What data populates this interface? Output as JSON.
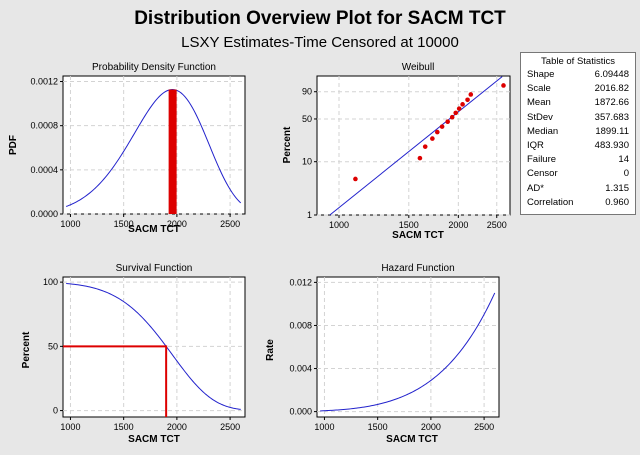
{
  "title": "Distribution Overview Plot for SACM TCT",
  "subtitle": "LSXY Estimates-Time Censored at 10000",
  "stats": {
    "title": "Table of Statistics",
    "rows": [
      {
        "label": "Shape",
        "value": "6.09448"
      },
      {
        "label": "Scale",
        "value": "2016.82"
      },
      {
        "label": "Mean",
        "value": "1872.66"
      },
      {
        "label": "StDev",
        "value": "357.683"
      },
      {
        "label": "Median",
        "value": "1899.11"
      },
      {
        "label": "IQR",
        "value": "483.930"
      },
      {
        "label": "Failure",
        "value": "14"
      },
      {
        "label": "Censor",
        "value": "0"
      },
      {
        "label": "AD*",
        "value": "1.315"
      },
      {
        "label": "Correlation",
        "value": "0.960"
      }
    ]
  },
  "chart_data": [
    {
      "type": "line",
      "title": "Probability Density Function",
      "xlabel": "SACM TCT",
      "ylabel": "PDF",
      "xlim": [
        930,
        2640
      ],
      "ylim": [
        0,
        0.00125
      ],
      "xticks": [
        1000,
        1500,
        2000,
        2500
      ],
      "yticks": [
        0.0,
        0.0004,
        0.0008,
        0.0012
      ],
      "ytick_labels": [
        "0.0000",
        "0.0004",
        "0.0008",
        "0.0012"
      ],
      "grid": true,
      "curve": "weibull pdf, shape 6.09448, scale 2016.82, x from 960 to 2600",
      "median_bar_x": 1960,
      "series_color": "#2222cc",
      "highlight_color": "#dd0000"
    },
    {
      "type": "scatter",
      "title": "Weibull",
      "xlabel": "SACM TCT",
      "ylabel": "Percent",
      "xscale": "log",
      "yscale": "weibull probability",
      "xlim": [
        880,
        2700
      ],
      "ylim": [
        1,
        99
      ],
      "xticks": [
        1000,
        1500,
        2000,
        2500
      ],
      "yticks": [
        1,
        10,
        50,
        90
      ],
      "grid": true,
      "points": [
        {
          "x": 1100,
          "y": 4.8
        },
        {
          "x": 1600,
          "y": 11.6
        },
        {
          "x": 1650,
          "y": 18.5
        },
        {
          "x": 1720,
          "y": 25.3
        },
        {
          "x": 1770,
          "y": 32.2
        },
        {
          "x": 1820,
          "y": 39.0
        },
        {
          "x": 1880,
          "y": 45.9
        },
        {
          "x": 1930,
          "y": 52.7
        },
        {
          "x": 1970,
          "y": 59.6
        },
        {
          "x": 2010,
          "y": 66.4
        },
        {
          "x": 2050,
          "y": 73.3
        },
        {
          "x": 2110,
          "y": 80.1
        },
        {
          "x": 2150,
          "y": 87.0
        },
        {
          "x": 2600,
          "y": 95.2
        }
      ],
      "fit_line": "weibull cdf, shape 6.09448, scale 2016.82",
      "point_color": "#dd0000",
      "line_color": "#2222cc"
    },
    {
      "type": "line",
      "title": "Survival Function",
      "xlabel": "SACM TCT",
      "ylabel": "Percent",
      "xlim": [
        930,
        2640
      ],
      "ylim": [
        -5,
        104
      ],
      "xticks": [
        1000,
        1500,
        2000,
        2500
      ],
      "yticks": [
        0,
        50,
        100
      ],
      "grid": true,
      "curve": "weibull survival, shape 6.09448, scale 2016.82",
      "median_marker": {
        "x": 1899.11,
        "y": 50
      },
      "series_color": "#2222cc",
      "highlight_color": "#dd0000"
    },
    {
      "type": "line",
      "title": "Hazard Function",
      "xlabel": "SACM TCT",
      "ylabel": "Rate",
      "xlim": [
        930,
        2640
      ],
      "ylim": [
        -0.0005,
        0.0125
      ],
      "xticks": [
        1000,
        1500,
        2000,
        2500
      ],
      "yticks": [
        0.0,
        0.004,
        0.008,
        0.012
      ],
      "ytick_labels": [
        "0.000",
        "0.004",
        "0.008",
        "0.012"
      ],
      "grid": true,
      "curve": "weibull hazard, shape 6.09448, scale 2016.82",
      "series_color": "#2222cc"
    }
  ]
}
